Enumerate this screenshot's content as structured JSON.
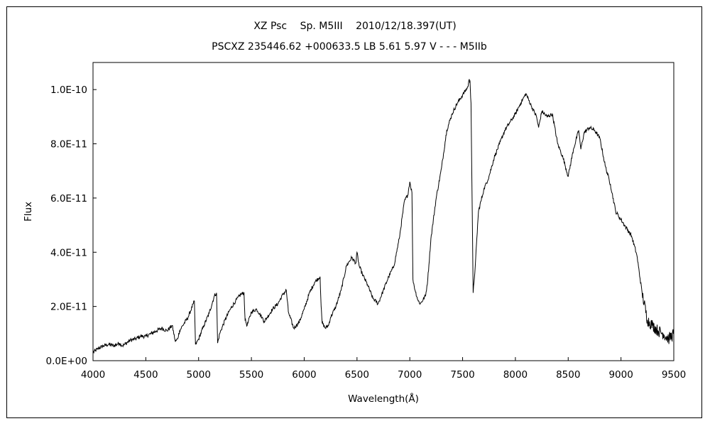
{
  "chart_data": {
    "type": "line",
    "title": "XZ Psc　 Sp. M5III　 2010/12/18.397(UT)",
    "subtitle": "PSCXZ 235446.62 +000633.5 LB 5.61 5.97 V - - - M5IIb",
    "xlabel": "Wavelength(Å)",
    "ylabel": "Flux",
    "xlim": [
      4000,
      9500
    ],
    "ylim": [
      0,
      1.1e-10
    ],
    "xticks": [
      4000,
      4500,
      5000,
      5500,
      6000,
      6500,
      7000,
      7500,
      8000,
      8500,
      9000,
      9500
    ],
    "xtick_labels": [
      "4000",
      "4500",
      "5000",
      "5500",
      "6000",
      "6500",
      "7000",
      "7500",
      "8000",
      "8500",
      "9000",
      "9500"
    ],
    "yticks": [
      0,
      2e-11,
      4e-11,
      6e-11,
      8e-11,
      1e-10
    ],
    "ytick_labels": [
      "0.0E+00",
      "2.0E-11",
      "4.0E-11",
      "6.0E-11",
      "8.0E-11",
      "1.0E-10"
    ],
    "grid": false,
    "legend": "none",
    "line_color": "#000000",
    "series": [
      {
        "x": [
          4000,
          4050,
          4100,
          4150,
          4200,
          4250,
          4280,
          4300,
          4350,
          4400,
          4450,
          4500,
          4550,
          4600,
          4650,
          4700,
          4750,
          4780,
          4800,
          4820,
          4850,
          4900,
          4950,
          4960,
          4970,
          4980,
          5000,
          5050,
          5100,
          5150,
          5170,
          5180,
          5200,
          5250,
          5300,
          5350,
          5400,
          5430,
          5440,
          5460,
          5500,
          5550,
          5600,
          5620,
          5650,
          5700,
          5750,
          5800,
          5830,
          5850,
          5900,
          5950,
          6000,
          6050,
          6100,
          6150,
          6160,
          6170,
          6200,
          6230,
          6250,
          6300,
          6350,
          6400,
          6450,
          6490,
          6500,
          6520,
          6550,
          6600,
          6650,
          6700,
          6750,
          6800,
          6850,
          6900,
          6950,
          6980,
          7000,
          7020,
          7030,
          7050,
          7080,
          7100,
          7150,
          7170,
          7200,
          7250,
          7300,
          7350,
          7400,
          7450,
          7500,
          7550,
          7560,
          7570,
          7580,
          7600,
          7620,
          7650,
          7700,
          7750,
          7800,
          7850,
          7900,
          7950,
          8000,
          8050,
          8100,
          8150,
          8200,
          8220,
          8250,
          8300,
          8350,
          8400,
          8450,
          8500,
          8550,
          8600,
          8620,
          8650,
          8700,
          8750,
          8800,
          8850,
          8900,
          8950,
          9000,
          9050,
          9100,
          9150,
          9200,
          9250,
          9300,
          9350,
          9400,
          9450,
          9500
        ],
        "y": [
          3e-12,
          4.5e-12,
          5.5e-12,
          6e-12,
          5.5e-12,
          6.5e-12,
          5.5e-12,
          6e-12,
          7.5e-12,
          8e-12,
          9e-12,
          9e-12,
          1e-11,
          1.1e-11,
          1.2e-11,
          1.1e-11,
          1.3e-11,
          7e-12,
          8e-12,
          1.1e-11,
          1.3e-11,
          1.6e-11,
          2.1e-11,
          2.2e-11,
          6e-12,
          6.5e-12,
          8e-12,
          1.3e-11,
          1.75e-11,
          2.4e-11,
          2.5e-11,
          6.5e-12,
          1e-11,
          1.5e-11,
          1.9e-11,
          2.2e-11,
          2.45e-11,
          2.5e-11,
          1.5e-11,
          1.3e-11,
          1.8e-11,
          1.9e-11,
          1.6e-11,
          1.45e-11,
          1.6e-11,
          1.9e-11,
          2.1e-11,
          2.45e-11,
          2.6e-11,
          1.8e-11,
          1.2e-11,
          1.4e-11,
          1.9e-11,
          2.5e-11,
          2.9e-11,
          3.1e-11,
          2e-11,
          1.4e-11,
          1.2e-11,
          1.3e-11,
          1.6e-11,
          2e-11,
          2.6e-11,
          3.5e-11,
          3.8e-11,
          3.6e-11,
          4e-11,
          3.5e-11,
          3.2e-11,
          2.8e-11,
          2.3e-11,
          2.1e-11,
          2.6e-11,
          3.1e-11,
          3.5e-11,
          4.5e-11,
          5.9e-11,
          6.1e-11,
          6.6e-11,
          6.2e-11,
          3e-11,
          2.6e-11,
          2.2e-11,
          2.1e-11,
          2.4e-11,
          3e-11,
          4.5e-11,
          6e-11,
          7.1e-11,
          8.5e-11,
          9.1e-11,
          9.5e-11,
          9.8e-11,
          1.01e-10,
          1.035e-10,
          1.03e-10,
          9.5e-11,
          2.5e-11,
          3.5e-11,
          5.5e-11,
          6.3e-11,
          6.8e-11,
          7.5e-11,
          8e-11,
          8.5e-11,
          8.8e-11,
          9.1e-11,
          9.5e-11,
          9.85e-11,
          9.4e-11,
          9e-11,
          8.6e-11,
          9.2e-11,
          9e-11,
          9.1e-11,
          8e-11,
          7.5e-11,
          6.8e-11,
          7.8e-11,
          8.5e-11,
          7.8e-11,
          8.4e-11,
          8.6e-11,
          8.5e-11,
          8.2e-11,
          7.2e-11,
          6.5e-11,
          5.5e-11,
          5.2e-11,
          4.9e-11,
          4.6e-11,
          3.9e-11,
          2.5e-11,
          1.5e-11,
          1.3e-11,
          1.1e-11,
          1e-11,
          8e-12,
          1e-11
        ]
      }
    ]
  }
}
